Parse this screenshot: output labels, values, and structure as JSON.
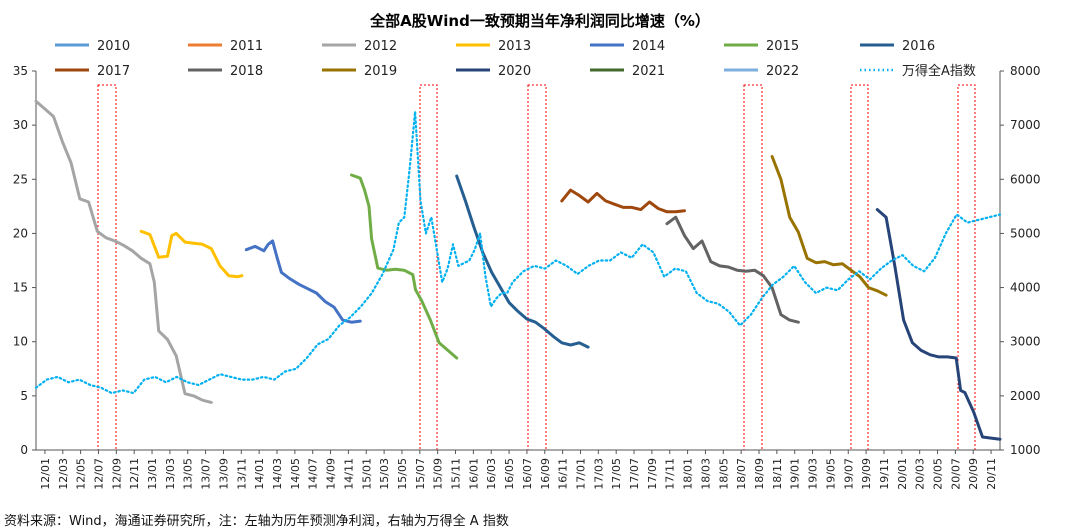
{
  "chart_data": {
    "type": "line",
    "title": "全部A股Wind一致预期当年净利润同比增速（%）",
    "source": "资料来源：Wind，海通证券研究所，注：左轴为历年预测净利润，右轴为万得全 A 指数",
    "y_left": {
      "lim": [
        0,
        35
      ],
      "ticks": [
        0,
        5,
        10,
        15,
        20,
        25,
        30,
        35
      ]
    },
    "y_right": {
      "lim": [
        1000,
        8000
      ],
      "ticks": [
        1000,
        2000,
        3000,
        4000,
        5000,
        6000,
        7000,
        8000
      ]
    },
    "x_ticks": [
      "12/01",
      "12/03",
      "12/05",
      "12/07",
      "12/09",
      "12/11",
      "13/01",
      "13/03",
      "13/05",
      "13/07",
      "13/09",
      "13/11",
      "14/01",
      "14/03",
      "14/05",
      "14/07",
      "14/09",
      "14/11",
      "15/01",
      "15/03",
      "15/05",
      "15/07",
      "15/09",
      "15/11",
      "16/01",
      "16/03",
      "16/05",
      "16/07",
      "16/09",
      "16/11",
      "17/01",
      "17/03",
      "17/05",
      "17/07",
      "17/09",
      "17/11",
      "18/01",
      "18/03",
      "18/05",
      "18/07",
      "18/09",
      "18/11",
      "19/01",
      "19/03",
      "19/05",
      "19/07",
      "19/09",
      "19/11",
      "20/01",
      "20/03",
      "20/05",
      "20/07",
      "20/09",
      "20/11"
    ],
    "series": [
      {
        "name": "2010",
        "color": "#5B9BD5",
        "style": "solid",
        "values": []
      },
      {
        "name": "2011",
        "color": "#ED7D31",
        "style": "solid",
        "values": []
      },
      {
        "name": "2012",
        "color": "#A5A5A5",
        "style": "solid",
        "values": [
          [
            0,
            32.2
          ],
          [
            1,
            31.5
          ],
          [
            2,
            30.8
          ],
          [
            3,
            28.5
          ],
          [
            4,
            26.5
          ],
          [
            5,
            23.2
          ],
          [
            6,
            22.9
          ],
          [
            7,
            20.2
          ],
          [
            8,
            19.6
          ],
          [
            9,
            19.3
          ],
          [
            10,
            18.9
          ],
          [
            11,
            18.4
          ],
          [
            12,
            17.7
          ],
          [
            13,
            17.2
          ],
          [
            13.5,
            15.5
          ],
          [
            14,
            11.0
          ],
          [
            15,
            10.2
          ],
          [
            16,
            8.7
          ],
          [
            17,
            5.2
          ],
          [
            18,
            5.0
          ],
          [
            19,
            4.6
          ],
          [
            20,
            4.4
          ]
        ]
      },
      {
        "name": "2013",
        "color": "#FFC000",
        "style": "solid",
        "values": [
          [
            12,
            20.2
          ],
          [
            13,
            19.9
          ],
          [
            14,
            17.8
          ],
          [
            15,
            17.9
          ],
          [
            15.5,
            19.8
          ],
          [
            16,
            20.0
          ],
          [
            17,
            19.2
          ],
          [
            18,
            19.1
          ],
          [
            19,
            19.0
          ],
          [
            20,
            18.6
          ],
          [
            21,
            17.0
          ],
          [
            22,
            16.1
          ],
          [
            23,
            16.0
          ],
          [
            23.5,
            16.1
          ]
        ]
      },
      {
        "name": "2014",
        "color": "#4472C4",
        "style": "solid",
        "values": [
          [
            24,
            18.5
          ],
          [
            25,
            18.8
          ],
          [
            26,
            18.4
          ],
          [
            26.5,
            19.0
          ],
          [
            27,
            19.3
          ],
          [
            27.5,
            17.8
          ],
          [
            28,
            16.4
          ],
          [
            29,
            15.8
          ],
          [
            30,
            15.3
          ],
          [
            31,
            14.9
          ],
          [
            32,
            14.5
          ],
          [
            33,
            13.7
          ],
          [
            34,
            13.2
          ],
          [
            35,
            12.0
          ],
          [
            36,
            11.8
          ],
          [
            37,
            11.9
          ]
        ]
      },
      {
        "name": "2015",
        "color": "#70AD47",
        "style": "solid",
        "values": [
          [
            36,
            25.4
          ],
          [
            37,
            25.1
          ],
          [
            37.5,
            24.0
          ],
          [
            38,
            22.5
          ],
          [
            38.3,
            19.5
          ],
          [
            39,
            16.8
          ],
          [
            40,
            16.6
          ],
          [
            41,
            16.7
          ],
          [
            42,
            16.6
          ],
          [
            43,
            16.2
          ],
          [
            43.3,
            14.8
          ],
          [
            44,
            13.8
          ],
          [
            45,
            12.0
          ],
          [
            46,
            9.9
          ],
          [
            47,
            9.2
          ],
          [
            48,
            8.5
          ]
        ]
      },
      {
        "name": "2016",
        "color": "#255E91",
        "style": "solid",
        "values": [
          [
            48,
            25.3
          ],
          [
            49,
            23.0
          ],
          [
            50,
            20.5
          ],
          [
            51,
            18.2
          ],
          [
            52,
            16.4
          ],
          [
            53,
            15.0
          ],
          [
            54,
            13.6
          ],
          [
            55,
            12.8
          ],
          [
            56,
            12.1
          ],
          [
            57,
            11.8
          ],
          [
            58,
            11.2
          ],
          [
            59,
            10.5
          ],
          [
            60,
            9.9
          ],
          [
            61,
            9.7
          ],
          [
            62,
            9.9
          ],
          [
            63,
            9.5
          ]
        ]
      },
      {
        "name": "2017",
        "color": "#9E480E",
        "style": "solid",
        "values": [
          [
            60,
            23.0
          ],
          [
            61,
            24.0
          ],
          [
            62,
            23.5
          ],
          [
            63,
            22.9
          ],
          [
            64,
            23.7
          ],
          [
            65,
            23.0
          ],
          [
            66,
            22.7
          ],
          [
            67,
            22.4
          ],
          [
            68,
            22.4
          ],
          [
            69,
            22.2
          ],
          [
            70,
            22.9
          ],
          [
            71,
            22.3
          ],
          [
            72,
            22.0
          ],
          [
            73,
            22.0
          ],
          [
            74,
            22.1
          ]
        ]
      },
      {
        "name": "2018",
        "color": "#636363",
        "style": "solid",
        "values": [
          [
            72,
            20.9
          ],
          [
            73,
            21.5
          ],
          [
            74,
            19.8
          ],
          [
            75,
            18.6
          ],
          [
            76,
            19.3
          ],
          [
            77,
            17.4
          ],
          [
            78,
            17.0
          ],
          [
            79,
            16.9
          ],
          [
            80,
            16.6
          ],
          [
            81,
            16.5
          ],
          [
            82,
            16.6
          ],
          [
            83,
            16.1
          ],
          [
            84,
            15.0
          ],
          [
            85,
            12.5
          ],
          [
            86,
            12.0
          ],
          [
            87,
            11.8
          ]
        ]
      },
      {
        "name": "2019",
        "color": "#997300",
        "style": "solid",
        "values": [
          [
            84,
            27.1
          ],
          [
            85,
            25.0
          ],
          [
            86,
            21.5
          ],
          [
            87,
            20.1
          ],
          [
            88,
            17.7
          ],
          [
            89,
            17.3
          ],
          [
            90,
            17.4
          ],
          [
            91,
            17.1
          ],
          [
            92,
            17.2
          ],
          [
            93,
            16.6
          ],
          [
            94,
            16.0
          ],
          [
            95,
            15.0
          ],
          [
            96,
            14.7
          ],
          [
            97,
            14.3
          ]
        ]
      },
      {
        "name": "2020",
        "color": "#264478",
        "style": "solid",
        "values": [
          [
            96,
            22.2
          ],
          [
            97,
            21.5
          ],
          [
            98,
            17.0
          ],
          [
            99,
            12.0
          ],
          [
            100,
            9.9
          ],
          [
            101,
            9.2
          ],
          [
            102,
            8.8
          ],
          [
            103,
            8.6
          ],
          [
            104,
            8.6
          ],
          [
            105,
            8.5
          ],
          [
            105.5,
            5.5
          ],
          [
            106,
            5.3
          ],
          [
            107,
            3.5
          ],
          [
            108,
            1.2
          ],
          [
            109,
            1.1
          ],
          [
            110,
            1.0
          ]
        ]
      },
      {
        "name": "2021",
        "color": "#43682B",
        "style": "solid",
        "values": []
      },
      {
        "name": "2022",
        "color": "#7CAFDD",
        "style": "solid",
        "values": []
      },
      {
        "name": "万得全A指数",
        "color": "#00B0F0",
        "style": "dotted",
        "axis": "right",
        "values": [
          [
            0,
            2150
          ],
          [
            2,
            2300
          ],
          [
            4,
            2350
          ],
          [
            6,
            2250
          ],
          [
            8,
            2300
          ],
          [
            10,
            2200
          ],
          [
            12,
            2150
          ],
          [
            14,
            2050
          ],
          [
            16,
            2100
          ],
          [
            18,
            2050
          ],
          [
            20,
            2300
          ],
          [
            22,
            2350
          ],
          [
            24,
            2250
          ],
          [
            26,
            2350
          ],
          [
            28,
            2250
          ],
          [
            30,
            2200
          ],
          [
            32,
            2300
          ],
          [
            34,
            2400
          ],
          [
            36,
            2350
          ],
          [
            38,
            2300
          ],
          [
            40,
            2300
          ],
          [
            42,
            2350
          ],
          [
            44,
            2300
          ],
          [
            46,
            2450
          ],
          [
            48,
            2500
          ],
          [
            50,
            2700
          ],
          [
            52,
            2950
          ],
          [
            54,
            3050
          ],
          [
            56,
            3300
          ],
          [
            58,
            3450
          ],
          [
            60,
            3650
          ],
          [
            62,
            3900
          ],
          [
            64,
            4250
          ],
          [
            66,
            4700
          ],
          [
            67,
            5200
          ],
          [
            68,
            5300
          ],
          [
            69,
            6200
          ],
          [
            70,
            7250
          ],
          [
            71,
            5600
          ],
          [
            72,
            5000
          ],
          [
            73,
            5300
          ],
          [
            74,
            4700
          ],
          [
            75,
            4100
          ],
          [
            76,
            4350
          ],
          [
            77,
            4800
          ],
          [
            78,
            4400
          ],
          [
            79,
            4450
          ],
          [
            80,
            4500
          ],
          [
            81,
            4700
          ],
          [
            82,
            5000
          ],
          [
            83,
            4200
          ],
          [
            84,
            3650
          ],
          [
            85,
            3800
          ],
          [
            86,
            3900
          ],
          [
            87,
            3900
          ],
          [
            88,
            4100
          ],
          [
            90,
            4300
          ],
          [
            92,
            4400
          ],
          [
            94,
            4350
          ],
          [
            96,
            4500
          ],
          [
            98,
            4400
          ],
          [
            100,
            4250
          ],
          [
            102,
            4400
          ],
          [
            104,
            4500
          ],
          [
            106,
            4500
          ],
          [
            108,
            4650
          ],
          [
            110,
            4550
          ],
          [
            112,
            4800
          ],
          [
            114,
            4650
          ],
          [
            116,
            4200
          ],
          [
            118,
            4350
          ],
          [
            120,
            4300
          ],
          [
            122,
            3900
          ],
          [
            124,
            3750
          ],
          [
            126,
            3700
          ],
          [
            128,
            3550
          ],
          [
            130,
            3300
          ],
          [
            132,
            3500
          ],
          [
            134,
            3800
          ],
          [
            136,
            4050
          ],
          [
            138,
            4200
          ],
          [
            140,
            4400
          ],
          [
            142,
            4100
          ],
          [
            144,
            3900
          ],
          [
            146,
            4000
          ],
          [
            148,
            3950
          ],
          [
            150,
            4150
          ],
          [
            152,
            4300
          ],
          [
            154,
            4150
          ],
          [
            156,
            4350
          ],
          [
            158,
            4500
          ],
          [
            160,
            4600
          ],
          [
            162,
            4400
          ],
          [
            164,
            4300
          ],
          [
            166,
            4550
          ],
          [
            168,
            5000
          ],
          [
            170,
            5350
          ],
          [
            172,
            5200
          ],
          [
            174,
            5250
          ],
          [
            176,
            5300
          ],
          [
            178,
            5350
          ]
        ]
      }
    ]
  }
}
